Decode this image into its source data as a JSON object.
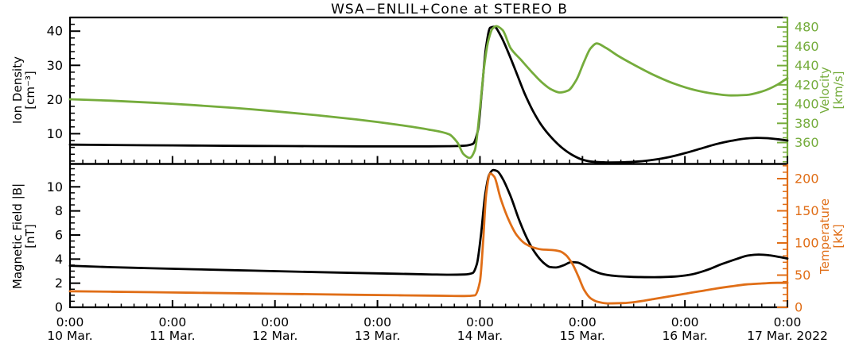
{
  "title": "WSA−ENLIL+Cone at STEREO B",
  "colors": {
    "background": "#ffffff",
    "frame": "#000000",
    "density_series": "#000000",
    "velocity_series": "#75ac3c",
    "bfield_series": "#000000",
    "temperature_series": "#e06e17"
  },
  "chart_data": {
    "type": "line",
    "title": "WSA−ENLIL+Cone at STEREO B",
    "grid": false,
    "legend": false,
    "x_axis": {
      "range_days": [
        0,
        7
      ],
      "major_tick_every_days": 1,
      "minor_tick_every_days": 0.125,
      "tick_labels": [
        {
          "time": "0:00",
          "date": "10 Mar."
        },
        {
          "time": "0:00",
          "date": "11 Mar."
        },
        {
          "time": "0:00",
          "date": "12 Mar."
        },
        {
          "time": "0:00",
          "date": "13 Mar."
        },
        {
          "time": "0:00",
          "date": "14 Mar."
        },
        {
          "time": "0:00",
          "date": "15 Mar."
        },
        {
          "time": "0:00",
          "date": "16 Mar."
        },
        {
          "time": "0:00",
          "date": "17 Mar. 2022"
        }
      ]
    },
    "panels": [
      {
        "name": "density-velocity",
        "left_axis": {
          "title": "Ion Density",
          "unit": "[cm⁻³]",
          "color": "#000000",
          "range": [
            1.5,
            44
          ],
          "major_ticks": [
            10,
            20,
            30,
            40
          ],
          "minor_step": 2
        },
        "right_axis": {
          "title": "Velocity",
          "unit": "[km/s]",
          "color": "#75ac3c",
          "range": [
            339,
            490
          ],
          "major_ticks": [
            360,
            380,
            400,
            420,
            440,
            460,
            480
          ],
          "minor_step": 5
        },
        "series": [
          {
            "name": "ion-density",
            "label": "Ion Density",
            "axis": "left",
            "color": "#000000",
            "points_day_value": [
              [
                0,
                6.8
              ],
              [
                0.4,
                6.7
              ],
              [
                0.8,
                6.6
              ],
              [
                1.2,
                6.55
              ],
              [
                1.6,
                6.45
              ],
              [
                2.0,
                6.4
              ],
              [
                2.4,
                6.35
              ],
              [
                2.8,
                6.3
              ],
              [
                3.2,
                6.3
              ],
              [
                3.5,
                6.3
              ],
              [
                3.7,
                6.35
              ],
              [
                3.85,
                6.5
              ],
              [
                3.93,
                7.0
              ],
              [
                3.98,
                11
              ],
              [
                4.02,
                23
              ],
              [
                4.06,
                35.5
              ],
              [
                4.1,
                41.0
              ],
              [
                4.14,
                41.3
              ],
              [
                4.2,
                38.8
              ],
              [
                4.28,
                33.5
              ],
              [
                4.36,
                27.5
              ],
              [
                4.44,
                21.5
              ],
              [
                4.52,
                16.5
              ],
              [
                4.6,
                12.5
              ],
              [
                4.7,
                8.8
              ],
              [
                4.8,
                5.9
              ],
              [
                4.9,
                3.8
              ],
              [
                5.0,
                2.4
              ],
              [
                5.1,
                1.8
              ],
              [
                5.25,
                1.6
              ],
              [
                5.4,
                1.65
              ],
              [
                5.55,
                1.9
              ],
              [
                5.7,
                2.4
              ],
              [
                5.85,
                3.2
              ],
              [
                6.0,
                4.3
              ],
              [
                6.15,
                5.6
              ],
              [
                6.3,
                6.9
              ],
              [
                6.45,
                7.9
              ],
              [
                6.6,
                8.6
              ],
              [
                6.7,
                8.8
              ],
              [
                6.8,
                8.7
              ],
              [
                6.9,
                8.4
              ],
              [
                7.0,
                8.0
              ]
            ]
          },
          {
            "name": "velocity",
            "label": "Velocity",
            "axis": "right",
            "color": "#75ac3c",
            "points_day_value": [
              [
                0,
                405
              ],
              [
                0.4,
                403.5
              ],
              [
                0.8,
                401.5
              ],
              [
                1.2,
                399
              ],
              [
                1.6,
                396
              ],
              [
                2.0,
                392.5
              ],
              [
                2.4,
                388.5
              ],
              [
                2.8,
                384
              ],
              [
                3.2,
                378.5
              ],
              [
                3.5,
                373.5
              ],
              [
                3.7,
                368.5
              ],
              [
                3.78,
                360
              ],
              [
                3.84,
                348
              ],
              [
                3.9,
                344
              ],
              [
                3.95,
                352
              ],
              [
                4.0,
                395
              ],
              [
                4.04,
                438
              ],
              [
                4.08,
                465
              ],
              [
                4.12,
                478
              ],
              [
                4.16,
                481
              ],
              [
                4.22,
                477
              ],
              [
                4.3,
                458
              ],
              [
                4.4,
                446
              ],
              [
                4.5,
                434
              ],
              [
                4.6,
                423
              ],
              [
                4.7,
                415
              ],
              [
                4.78,
                412
              ],
              [
                4.86,
                414
              ],
              [
                4.94,
                425
              ],
              [
                5.02,
                445
              ],
              [
                5.08,
                458
              ],
              [
                5.14,
                463
              ],
              [
                5.22,
                459
              ],
              [
                5.35,
                450
              ],
              [
                5.5,
                441
              ],
              [
                5.7,
                430
              ],
              [
                5.9,
                421
              ],
              [
                6.1,
                414.5
              ],
              [
                6.3,
                410.5
              ],
              [
                6.45,
                409
              ],
              [
                6.6,
                409.5
              ],
              [
                6.75,
                413
              ],
              [
                6.9,
                420
              ],
              [
                7.0,
                427
              ]
            ]
          }
        ]
      },
      {
        "name": "bfield-temperature",
        "left_axis": {
          "title": "Magnetic Field |B|",
          "unit": "[nT]",
          "color": "#000000",
          "range": [
            0,
            11.8
          ],
          "major_ticks": [
            0,
            2,
            4,
            6,
            8,
            10
          ],
          "minor_step": 0.5
        },
        "right_axis": {
          "title": "Temperature",
          "unit": "[kK]",
          "color": "#e06e17",
          "range": [
            0,
            221
          ],
          "major_ticks": [
            0,
            50,
            100,
            150,
            200
          ],
          "minor_step": 10
        },
        "series": [
          {
            "name": "magnetic-field",
            "label": "Magnetic Field |B|",
            "axis": "left",
            "color": "#000000",
            "points_day_value": [
              [
                0,
                3.45
              ],
              [
                0.4,
                3.33
              ],
              [
                0.8,
                3.24
              ],
              [
                1.2,
                3.16
              ],
              [
                1.6,
                3.08
              ],
              [
                2.0,
                3.0
              ],
              [
                2.4,
                2.92
              ],
              [
                2.8,
                2.85
              ],
              [
                3.2,
                2.78
              ],
              [
                3.5,
                2.73
              ],
              [
                3.7,
                2.7
              ],
              [
                3.85,
                2.72
              ],
              [
                3.93,
                2.85
              ],
              [
                3.97,
                3.6
              ],
              [
                4.01,
                6.0
              ],
              [
                4.05,
                9.3
              ],
              [
                4.09,
                11.0
              ],
              [
                4.13,
                11.4
              ],
              [
                4.17,
                11.3
              ],
              [
                4.22,
                10.7
              ],
              [
                4.3,
                9.2
              ],
              [
                4.38,
                7.3
              ],
              [
                4.46,
                5.7
              ],
              [
                4.54,
                4.5
              ],
              [
                4.62,
                3.7
              ],
              [
                4.68,
                3.35
              ],
              [
                4.74,
                3.3
              ],
              [
                4.82,
                3.5
              ],
              [
                4.89,
                3.75
              ],
              [
                4.95,
                3.72
              ],
              [
                5.02,
                3.45
              ],
              [
                5.1,
                3.05
              ],
              [
                5.2,
                2.75
              ],
              [
                5.35,
                2.58
              ],
              [
                5.5,
                2.52
              ],
              [
                5.7,
                2.5
              ],
              [
                5.9,
                2.55
              ],
              [
                6.05,
                2.7
              ],
              [
                6.2,
                3.05
              ],
              [
                6.35,
                3.55
              ],
              [
                6.5,
                4.0
              ],
              [
                6.62,
                4.3
              ],
              [
                6.72,
                4.38
              ],
              [
                6.82,
                4.32
              ],
              [
                6.92,
                4.18
              ],
              [
                7.0,
                4.05
              ]
            ]
          },
          {
            "name": "temperature",
            "label": "Temperature",
            "axis": "right",
            "color": "#e06e17",
            "points_day_value": [
              [
                0,
                25
              ],
              [
                0.4,
                24.2
              ],
              [
                0.8,
                23.4
              ],
              [
                1.2,
                22.6
              ],
              [
                1.6,
                21.8
              ],
              [
                2.0,
                21.0
              ],
              [
                2.4,
                20.2
              ],
              [
                2.8,
                19.4
              ],
              [
                3.2,
                18.7
              ],
              [
                3.5,
                18.2
              ],
              [
                3.7,
                17.8
              ],
              [
                3.85,
                17.5
              ],
              [
                3.95,
                18.5
              ],
              [
                4.0,
                40
              ],
              [
                4.03,
                100
              ],
              [
                4.06,
                175
              ],
              [
                4.1,
                208
              ],
              [
                4.14,
                203
              ],
              [
                4.2,
                170
              ],
              [
                4.28,
                136
              ],
              [
                4.36,
                112
              ],
              [
                4.44,
                99
              ],
              [
                4.52,
                93
              ],
              [
                4.6,
                90
              ],
              [
                4.7,
                89
              ],
              [
                4.78,
                87
              ],
              [
                4.84,
                81
              ],
              [
                4.9,
                68
              ],
              [
                4.96,
                48
              ],
              [
                5.02,
                26
              ],
              [
                5.08,
                14
              ],
              [
                5.15,
                8.5
              ],
              [
                5.25,
                6
              ],
              [
                5.4,
                6.5
              ],
              [
                5.55,
                9
              ],
              [
                5.7,
                13
              ],
              [
                5.85,
                17
              ],
              [
                6.0,
                21
              ],
              [
                6.15,
                25
              ],
              [
                6.3,
                29
              ],
              [
                6.45,
                32.5
              ],
              [
                6.6,
                35.5
              ],
              [
                6.75,
                37
              ],
              [
                6.9,
                38
              ],
              [
                7.0,
                38
              ]
            ]
          }
        ]
      }
    ]
  }
}
